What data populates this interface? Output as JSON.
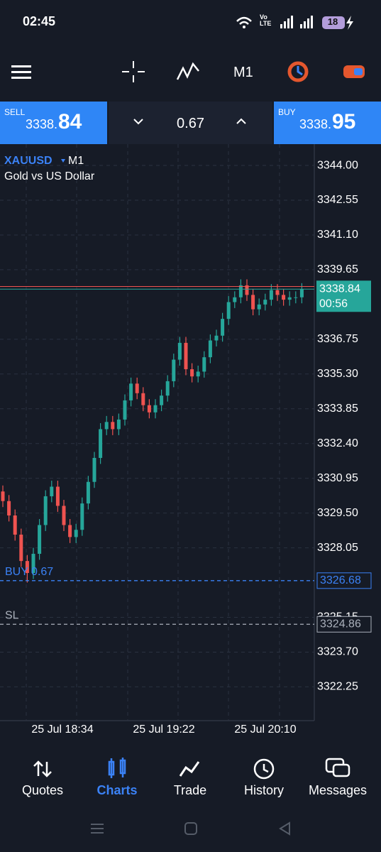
{
  "status_bar": {
    "time": "02:45",
    "network": "Vo LTE",
    "battery": "18"
  },
  "toolbar": {
    "timeframe": "M1"
  },
  "trade_panel": {
    "sell_label": "SELL",
    "sell_price_main": "3338.",
    "sell_price_big": "84",
    "volume": "0.67",
    "buy_label": "BUY",
    "buy_price_main": "3338.",
    "buy_price_big": "95"
  },
  "chart_data": {
    "type": "candlestick",
    "symbol": "XAUUSD",
    "timeframe": "M1",
    "description": "Gold vs US Dollar",
    "up_color": "#26a69a",
    "down_color": "#ef5350",
    "grid": true,
    "ylim": [
      3320.84,
      3344.89
    ],
    "yticks": [
      {
        "value": 3344,
        "label": "3344.00"
      },
      3342.55,
      {
        "value": 3341.1,
        "label": "3341.10"
      },
      3339.65,
      3336.75,
      {
        "value": 3335.3,
        "label": "3335.30"
      },
      3333.85,
      {
        "value": 3332.4,
        "label": "3332.40"
      },
      3330.95,
      {
        "value": 3329.5,
        "label": "3329.50"
      },
      3328.05,
      3325.15,
      {
        "value": 3323.7,
        "label": "3323.70"
      },
      3322.25
    ],
    "xtick_labels": [
      "25 Jul 18:34",
      "25 Jul 19:22",
      "25 Jul 20:10"
    ],
    "candles": [
      [
        3330.4,
        3330.65,
        3329.75,
        3330.0
      ],
      [
        3330.0,
        3330.25,
        3329.15,
        3329.4
      ],
      [
        3329.4,
        3329.65,
        3328.35,
        3328.6
      ],
      [
        3328.6,
        3328.85,
        3327.25,
        3327.5
      ],
      [
        3327.5,
        3327.75,
        3326.6,
        3327.0
      ],
      [
        3327.0,
        3328.05,
        3326.75,
        3327.8
      ],
      [
        3327.8,
        3329.25,
        3327.55,
        3329.0
      ],
      [
        3329.0,
        3330.45,
        3328.75,
        3330.2
      ],
      [
        3330.2,
        3330.85,
        3329.95,
        3330.6
      ],
      [
        3330.6,
        3330.85,
        3329.55,
        3329.8
      ],
      [
        3329.8,
        3330.05,
        3328.75,
        3329.0
      ],
      [
        3329.0,
        3329.25,
        3328.25,
        3328.5
      ],
      [
        3328.5,
        3329.05,
        3328.25,
        3328.8
      ],
      [
        3328.8,
        3330.15,
        3328.55,
        3329.9
      ],
      [
        3329.9,
        3331.05,
        3329.65,
        3330.8
      ],
      [
        3330.8,
        3332.05,
        3330.55,
        3331.8
      ],
      [
        3331.8,
        3333.25,
        3331.55,
        3333.0
      ],
      [
        3333.0,
        3333.55,
        3332.75,
        3333.3
      ],
      [
        3333.3,
        3333.55,
        3332.75,
        3333.0
      ],
      [
        3333.0,
        3333.65,
        3332.75,
        3333.4
      ],
      [
        3333.4,
        3334.45,
        3333.15,
        3334.2
      ],
      [
        3334.2,
        3335.15,
        3333.95,
        3334.9
      ],
      [
        3334.9,
        3335.15,
        3334.25,
        3334.5
      ],
      [
        3334.5,
        3334.75,
        3333.75,
        3334.0
      ],
      [
        3334.0,
        3334.25,
        3333.45,
        3333.7
      ],
      [
        3333.7,
        3334.25,
        3333.45,
        3334.0
      ],
      [
        3334.0,
        3334.65,
        3333.75,
        3334.4
      ],
      [
        3334.4,
        3335.25,
        3334.15,
        3335.0
      ],
      [
        3335.0,
        3336.15,
        3334.75,
        3335.9
      ],
      [
        3335.9,
        3336.85,
        3335.65,
        3336.6
      ],
      [
        3336.6,
        3336.85,
        3335.25,
        3335.5
      ],
      [
        3335.5,
        3335.75,
        3334.95,
        3335.2
      ],
      [
        3335.2,
        3335.65,
        3334.95,
        3335.4
      ],
      [
        3335.4,
        3336.25,
        3335.15,
        3336.0
      ],
      [
        3336.0,
        3336.95,
        3335.75,
        3336.7
      ],
      [
        3336.7,
        3337.15,
        3336.45,
        3336.9
      ],
      [
        3336.9,
        3337.85,
        3336.65,
        3337.6
      ],
      [
        3337.6,
        3338.55,
        3337.35,
        3338.3
      ],
      [
        3338.3,
        3338.75,
        3338.05,
        3338.5
      ],
      [
        3338.5,
        3339.25,
        3338.25,
        3339.0
      ],
      [
        3339.0,
        3339.25,
        3338.35,
        3338.6
      ],
      [
        3338.6,
        3338.85,
        3337.75,
        3338.0
      ],
      [
        3338.0,
        3338.45,
        3337.75,
        3338.2
      ],
      [
        3338.2,
        3338.65,
        3337.95,
        3338.4
      ],
      [
        3338.4,
        3339.05,
        3338.15,
        3338.8
      ],
      [
        3338.8,
        3339.05,
        3338.35,
        3338.6
      ],
      [
        3338.6,
        3338.85,
        3338.15,
        3338.4
      ],
      [
        3338.4,
        3338.75,
        3338.15,
        3338.5
      ],
      [
        3338.5,
        3338.75,
        3338.25,
        3338.5
      ],
      [
        3338.5,
        3339.09,
        3338.25,
        3338.84
      ]
    ],
    "bid": 3338.84,
    "bid_timer": "00:56",
    "ask": 3338.95,
    "position": {
      "label": "BUY 0.67",
      "price": 3326.68
    },
    "stop_loss": {
      "label": "SL",
      "price": 3324.86
    }
  },
  "bottom_nav": {
    "items": [
      "Quotes",
      "Charts",
      "Trade",
      "History",
      "Messages"
    ],
    "active": "Charts"
  }
}
